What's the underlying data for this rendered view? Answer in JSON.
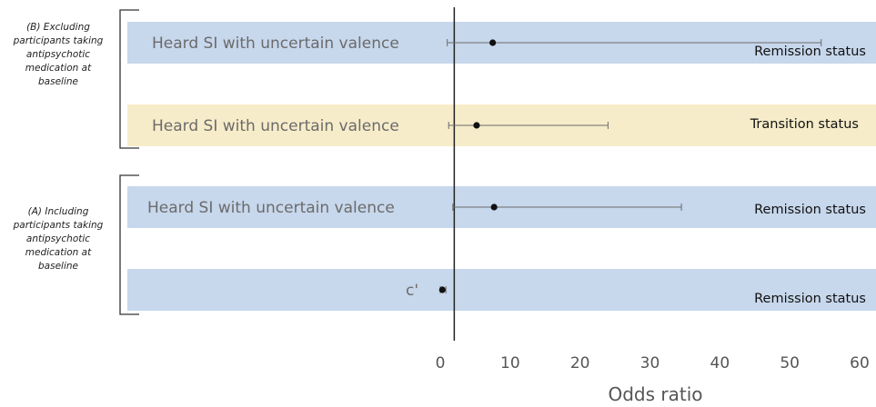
{
  "colors": {
    "band_blue": "#c7d7ec",
    "band_yellow": "#f7ecc9",
    "whisker": "#6b6b6b",
    "point": "#111111",
    "bracket": "#333333",
    "ref_line": "#222222"
  },
  "groups": [
    {
      "label": "(B) Excluding participants taking antipsychotic medication at baseline"
    },
    {
      "label": "(A) Including participants taking antipsychotic medication at baseline"
    }
  ],
  "chart_data": {
    "type": "forest",
    "xlabel": "Odds ratio",
    "xlim": [
      0,
      60
    ],
    "xticks": [
      0,
      10,
      20,
      30,
      40,
      50,
      60
    ],
    "reference_line": 2,
    "grid": false,
    "rows": [
      {
        "group": "(B) Excluding participants taking antipsychotic medication at baseline",
        "label": "Heard SI with uncertain valence",
        "status": "Remission status",
        "band": "blue",
        "or": 7.5,
        "ci_low": 1,
        "ci_high": 54.5
      },
      {
        "group": "(B) Excluding participants taking antipsychotic medication at baseline",
        "label": "Heard SI with uncertain valence",
        "status": "Transition status",
        "band": "yellow",
        "or": 5.2,
        "ci_low": 1.2,
        "ci_high": 24
      },
      {
        "group": "(A) Including participants taking antipsychotic medication at baseline",
        "label": "Heard SI with uncertain valence",
        "status": "Remission status",
        "band": "blue",
        "or": 7.7,
        "ci_low": 1.8,
        "ci_high": 34.5
      },
      {
        "group": "(A) Including participants taking antipsychotic medication at baseline",
        "label": "c'",
        "status": "Remission status",
        "band": "blue",
        "or": 0.3,
        "ci_low": 0,
        "ci_high": 0.8
      }
    ]
  }
}
